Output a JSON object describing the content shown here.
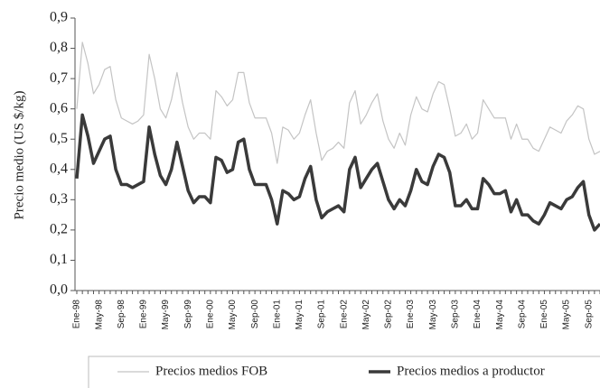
{
  "chart_data": {
    "type": "line",
    "ylabel": "Precio medio (US $/kg)",
    "categories": [
      "Ene-98",
      null,
      null,
      null,
      "May-98",
      null,
      null,
      null,
      "Sep-98",
      null,
      null,
      null,
      "Ene-99",
      null,
      null,
      null,
      "May-99",
      null,
      null,
      null,
      "Sep-99",
      null,
      null,
      null,
      "Ene-00",
      null,
      null,
      null,
      "May-00",
      null,
      null,
      null,
      "Sep-00",
      null,
      null,
      null,
      "Ene-01",
      null,
      null,
      null,
      "May-01",
      null,
      null,
      null,
      "Sep-01",
      null,
      null,
      null,
      "Ene-02",
      null,
      null,
      null,
      "May-02",
      null,
      null,
      null,
      "Sep-02",
      null,
      null,
      null,
      "Ene-03",
      null,
      null,
      null,
      "May-03",
      null,
      null,
      null,
      "Sep-03",
      null,
      null,
      null,
      "Ene-04",
      null,
      null,
      null,
      "May-04",
      null,
      null,
      null,
      "Sep-04",
      null,
      null,
      null,
      "Ene-05",
      null,
      null,
      null,
      "May-05",
      null,
      null,
      null,
      "Sep-05",
      null,
      null
    ],
    "series": [
      {
        "name": "Precios medios FOB",
        "color": "#c4c4c4",
        "width": 1.2,
        "values": [
          0.6,
          0.82,
          0.75,
          0.65,
          0.68,
          0.73,
          0.74,
          0.63,
          0.57,
          0.56,
          0.55,
          0.56,
          0.58,
          0.78,
          0.7,
          0.6,
          0.57,
          0.63,
          0.72,
          0.62,
          0.54,
          0.5,
          0.52,
          0.52,
          0.5,
          0.66,
          0.64,
          0.61,
          0.63,
          0.72,
          0.72,
          0.62,
          0.57,
          0.57,
          0.57,
          0.52,
          0.42,
          0.54,
          0.53,
          0.5,
          0.52,
          0.58,
          0.63,
          0.52,
          0.43,
          0.46,
          0.47,
          0.49,
          0.47,
          0.62,
          0.66,
          0.55,
          0.58,
          0.62,
          0.65,
          0.56,
          0.5,
          0.47,
          0.52,
          0.48,
          0.58,
          0.64,
          0.6,
          0.59,
          0.65,
          0.69,
          0.68,
          0.6,
          0.51,
          0.52,
          0.55,
          0.5,
          0.52,
          0.63,
          0.6,
          0.57,
          0.57,
          0.57,
          0.5,
          0.55,
          0.5,
          0.5,
          0.47,
          0.46,
          0.5,
          0.54,
          0.53,
          0.52,
          0.56,
          0.58,
          0.61,
          0.6,
          0.5,
          0.45,
          0.46
        ]
      },
      {
        "name": "Precios medios a productor",
        "color": "#3a3a3a",
        "width": 3.5,
        "values": [
          0.37,
          0.58,
          0.51,
          0.42,
          0.46,
          0.5,
          0.51,
          0.4,
          0.35,
          0.35,
          0.34,
          0.35,
          0.36,
          0.54,
          0.45,
          0.38,
          0.35,
          0.4,
          0.49,
          0.41,
          0.33,
          0.29,
          0.31,
          0.31,
          0.29,
          0.44,
          0.43,
          0.39,
          0.4,
          0.49,
          0.5,
          0.4,
          0.35,
          0.35,
          0.35,
          0.3,
          0.22,
          0.33,
          0.32,
          0.3,
          0.31,
          0.37,
          0.41,
          0.3,
          0.24,
          0.26,
          0.27,
          0.28,
          0.26,
          0.4,
          0.44,
          0.34,
          0.37,
          0.4,
          0.42,
          0.36,
          0.3,
          0.27,
          0.3,
          0.28,
          0.33,
          0.4,
          0.36,
          0.35,
          0.41,
          0.45,
          0.44,
          0.39,
          0.28,
          0.28,
          0.3,
          0.27,
          0.27,
          0.37,
          0.35,
          0.32,
          0.32,
          0.33,
          0.26,
          0.3,
          0.25,
          0.25,
          0.23,
          0.22,
          0.25,
          0.29,
          0.28,
          0.27,
          0.3,
          0.31,
          0.34,
          0.36,
          0.25,
          0.2,
          0.22
        ]
      }
    ],
    "ylim": [
      0,
      0.9
    ],
    "yticks": [
      {
        "value": 0,
        "label": "0,0"
      },
      {
        "value": 0.1,
        "label": "0,1"
      },
      {
        "value": 0.2,
        "label": "0,2"
      },
      {
        "value": 0.3,
        "label": "0,3"
      },
      {
        "value": 0.4,
        "label": "0,4"
      },
      {
        "value": 0.5,
        "label": "0,5"
      },
      {
        "value": 0.6,
        "label": "0,6"
      },
      {
        "value": 0.7,
        "label": "0,7"
      },
      {
        "value": 0.8,
        "label": "0,8"
      },
      {
        "value": 0.9,
        "label": "0,9"
      }
    ],
    "legend": "bottom"
  }
}
